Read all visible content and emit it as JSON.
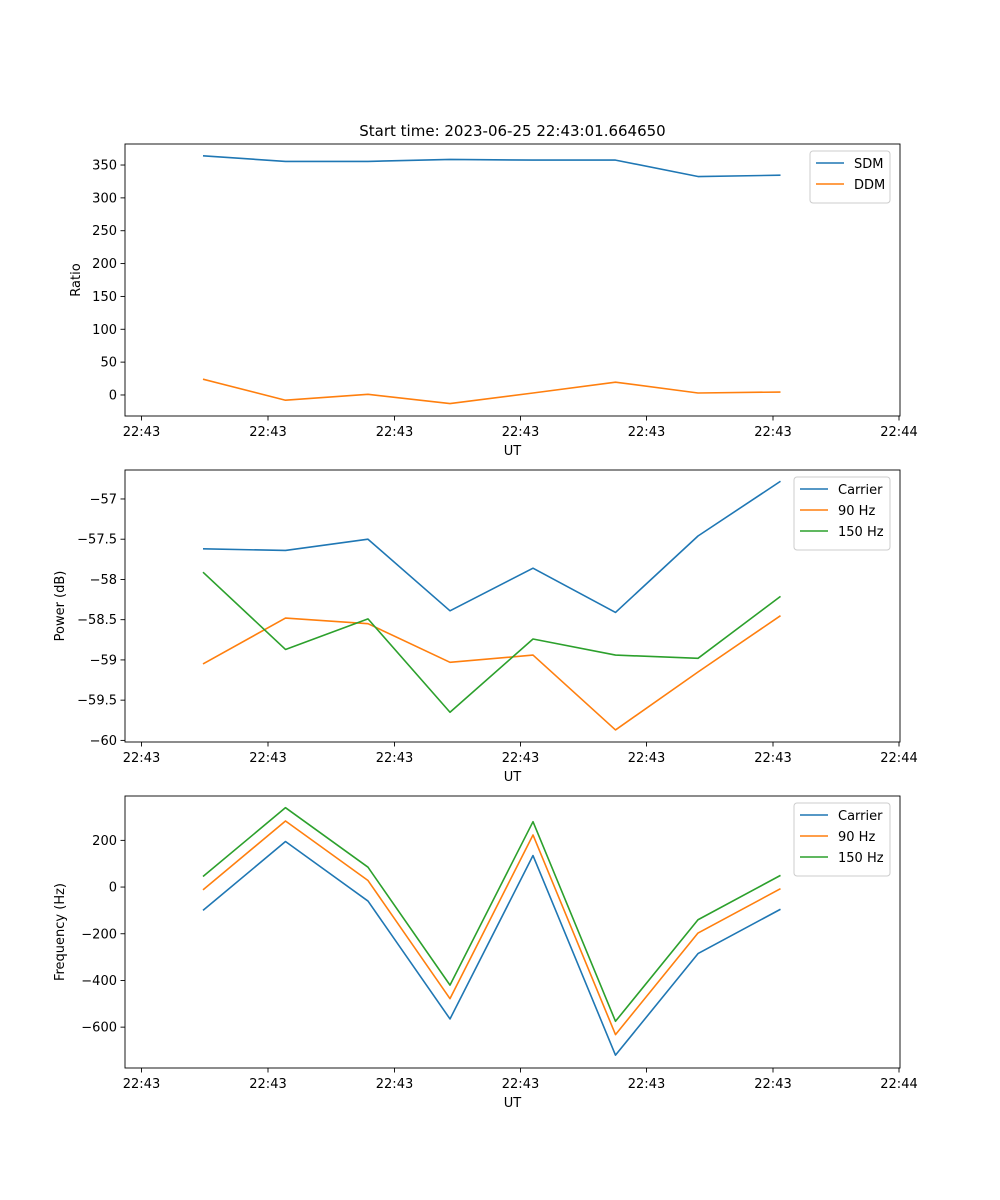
{
  "figure": {
    "suptitle": "Start time: 2023-06-25 22:43:01.664650"
  },
  "chart_data": [
    {
      "type": "line",
      "title": "Start time: 2023-06-25 22:43:01.664650",
      "xlabel": "UT",
      "ylabel": "Ratio",
      "xticks": [
        "22:43",
        "22:43",
        "22:43",
        "22:43",
        "22:43",
        "22:43",
        "22:44"
      ],
      "yticks": [
        0,
        50,
        100,
        150,
        200,
        250,
        300,
        350
      ],
      "ylim": [
        -32,
        382
      ],
      "grid": false,
      "legend": "top-right",
      "x_index": [
        0,
        1,
        2,
        3,
        4,
        5,
        6,
        7
      ],
      "series": [
        {
          "name": "SDM",
          "color": "#1f77b4",
          "values": [
            364,
            355.5,
            355.5,
            358.5,
            357.5,
            357.5,
            332.5,
            334.5
          ]
        },
        {
          "name": "DDM",
          "color": "#ff7f0e",
          "values": [
            24,
            -8,
            1,
            -13,
            3,
            19.5,
            3,
            4.5
          ]
        }
      ]
    },
    {
      "type": "line",
      "title": "",
      "xlabel": "UT",
      "ylabel": "Power (dB)",
      "xticks": [
        "22:43",
        "22:43",
        "22:43",
        "22:43",
        "22:43",
        "22:43",
        "22:44"
      ],
      "yticks": [
        -57.0,
        -57.5,
        -58.0,
        -58.5,
        -59.0,
        -59.5,
        -60.0
      ],
      "ylim": [
        -60.02,
        -56.64
      ],
      "grid": false,
      "legend": "top-right",
      "x_index": [
        0,
        1,
        2,
        3,
        4,
        5,
        6,
        7
      ],
      "series": [
        {
          "name": "Carrier",
          "color": "#1f77b4",
          "values": [
            -57.62,
            -57.64,
            -57.5,
            -58.39,
            -57.86,
            -58.41,
            -57.46,
            -56.78
          ]
        },
        {
          "name": "90 Hz",
          "color": "#ff7f0e",
          "values": [
            -59.05,
            -58.48,
            -58.55,
            -59.03,
            -58.94,
            -59.87,
            -59.15,
            -58.45
          ]
        },
        {
          "name": "150 Hz",
          "color": "#2ca02c",
          "values": [
            -57.91,
            -58.87,
            -58.49,
            -59.65,
            -58.74,
            -58.94,
            -58.98,
            -58.21
          ]
        }
      ]
    },
    {
      "type": "line",
      "title": "",
      "xlabel": "UT",
      "ylabel": "Frequency (Hz)",
      "xticks": [
        "22:43",
        "22:43",
        "22:43",
        "22:43",
        "22:43",
        "22:43",
        "22:44"
      ],
      "yticks": [
        200,
        0,
        -200,
        -400,
        -600
      ],
      "ylim": [
        -775,
        390
      ],
      "grid": false,
      "legend": "top-right",
      "x_index": [
        0,
        1,
        2,
        3,
        4,
        5,
        6,
        7
      ],
      "series": [
        {
          "name": "Carrier",
          "color": "#1f77b4",
          "values": [
            -100,
            195,
            -60,
            -565,
            135,
            -720,
            -285,
            -95
          ]
        },
        {
          "name": "90 Hz",
          "color": "#ff7f0e",
          "values": [
            -12,
            283,
            28,
            -478,
            223,
            -632,
            -197,
            -7
          ]
        },
        {
          "name": "150 Hz",
          "color": "#2ca02c",
          "values": [
            45,
            340,
            85,
            -420,
            280,
            -575,
            -140,
            50
          ]
        }
      ]
    }
  ]
}
